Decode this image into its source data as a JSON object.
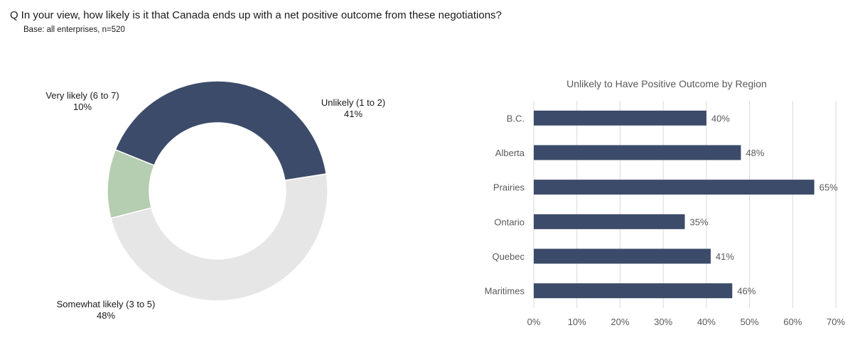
{
  "header": {
    "q_mark": "Q",
    "question": "In your view, how likely is it that Canada ends up with a net positive outcome from these negotiations?",
    "base": "Base: all enterprises,  n=520"
  },
  "colors": {
    "navy": "#3c4b69",
    "light_gray": "#e6e6e6",
    "sage": "#b5cdb0",
    "grid": "#d9d9d9",
    "axis_text": "#595959"
  },
  "chart_data": [
    {
      "type": "pie",
      "variant": "donut",
      "slices": [
        {
          "label": "Unlikely (1 to 2)",
          "value": 41,
          "value_label": "41%",
          "color": "#3c4b69"
        },
        {
          "label": "Somewhat likely (3 to 5)",
          "value": 48,
          "value_label": "48%",
          "color": "#e6e6e6"
        },
        {
          "label": "Very likely (6 to 7)",
          "value": 10,
          "value_label": "10%",
          "color": "#b5cdb0"
        }
      ]
    },
    {
      "type": "bar",
      "orientation": "horizontal",
      "title": "Unlikely to Have Positive Outcome by Region",
      "categories": [
        "B.C.",
        "Alberta",
        "Prairies",
        "Ontario",
        "Quebec",
        "Maritimes"
      ],
      "values": [
        40,
        48,
        65,
        35,
        41,
        46
      ],
      "value_labels": [
        "40%",
        "48%",
        "65%",
        "35%",
        "41%",
        "46%"
      ],
      "xlim": [
        0,
        70
      ],
      "ticks": [
        0,
        10,
        20,
        30,
        40,
        50,
        60,
        70
      ],
      "tick_labels": [
        "0%",
        "10%",
        "20%",
        "30%",
        "40%",
        "50%",
        "60%",
        "70%"
      ],
      "grid": true,
      "color": "#3c4b69"
    }
  ]
}
